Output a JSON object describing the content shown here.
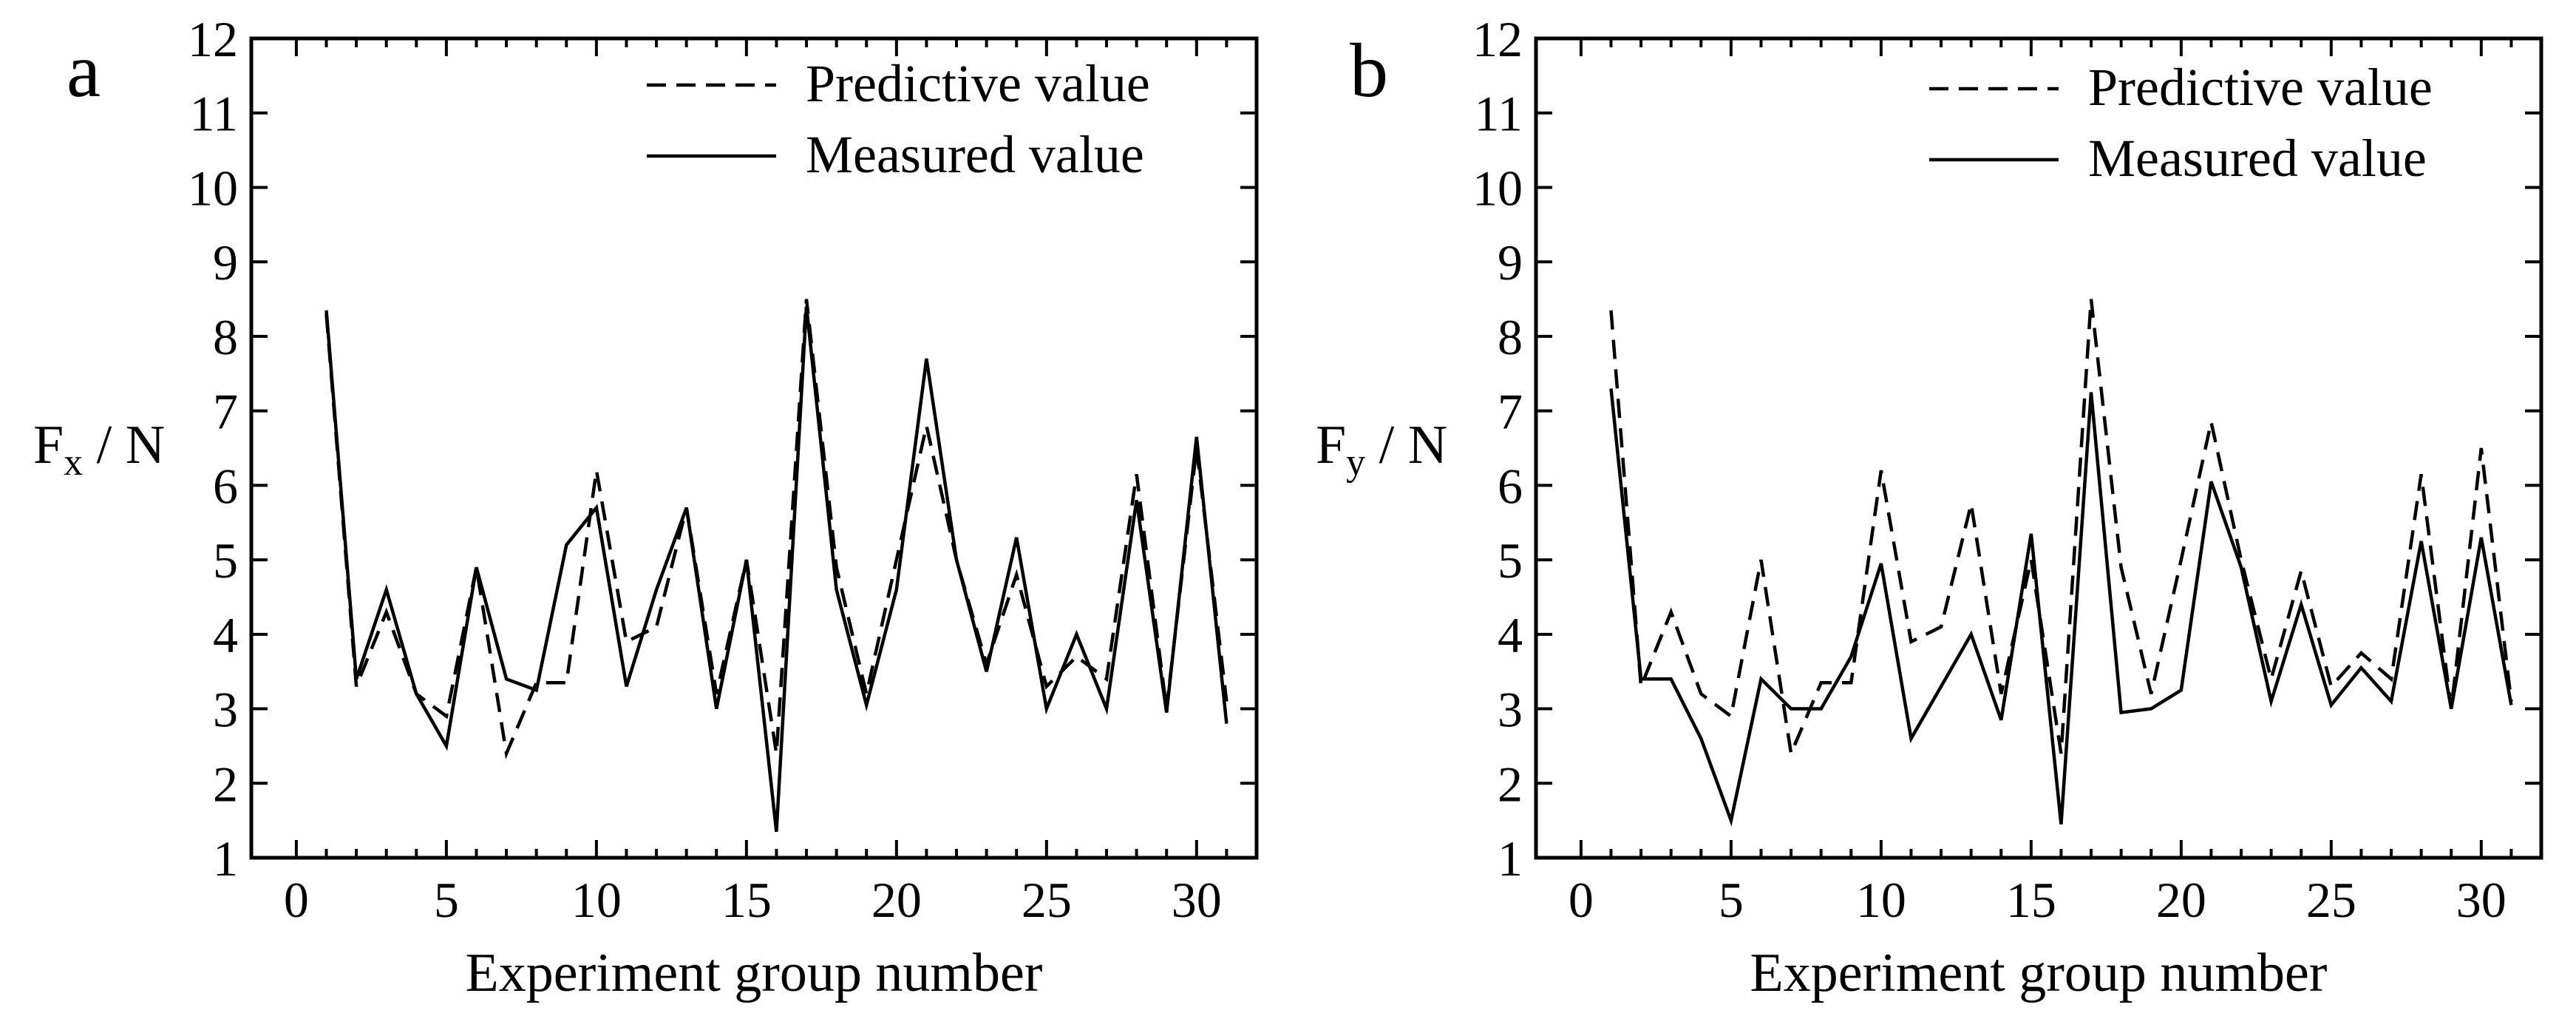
{
  "chart_data": [
    {
      "type": "line",
      "panel_label": "a",
      "xlabel": "Experiment group number",
      "ylabel_main": "F",
      "ylabel_sub": "x",
      "ylabel_unit": " / N",
      "xlim": [
        -1.5,
        32
      ],
      "ylim": [
        1,
        12
      ],
      "xticks": [
        0,
        5,
        10,
        15,
        20,
        25,
        30
      ],
      "yticks": [
        1,
        2,
        3,
        4,
        5,
        6,
        7,
        8,
        9,
        10,
        11,
        12
      ],
      "legend_position": "top-right",
      "x": [
        1,
        2,
        3,
        4,
        5,
        6,
        7,
        8,
        9,
        10,
        11,
        12,
        13,
        14,
        15,
        16,
        17,
        18,
        19,
        20,
        21,
        22,
        23,
        24,
        25,
        26,
        27,
        28,
        29,
        30,
        31
      ],
      "series": [
        {
          "name": "Predictive value",
          "style": "dashed",
          "values": [
            8.3,
            3.3,
            4.3,
            3.2,
            2.9,
            4.9,
            2.4,
            3.35,
            3.35,
            6.2,
            3.9,
            4.1,
            5.7,
            3.2,
            5.0,
            2.4,
            8.5,
            4.9,
            3.2,
            5.0,
            6.8,
            5.0,
            3.6,
            4.8,
            3.3,
            3.7,
            3.4,
            6.15,
            3.0,
            6.5,
            3.1
          ]
        },
        {
          "name": "Measured value",
          "style": "solid",
          "values": [
            8.35,
            3.4,
            4.6,
            3.2,
            2.5,
            4.9,
            3.4,
            3.25,
            5.2,
            5.7,
            3.3,
            4.6,
            5.7,
            3.0,
            5.0,
            1.35,
            8.4,
            4.6,
            3.05,
            4.6,
            7.7,
            5.0,
            3.5,
            5.3,
            3.0,
            4.0,
            3.0,
            5.8,
            2.95,
            6.65,
            2.8
          ]
        }
      ]
    },
    {
      "type": "line",
      "panel_label": "b",
      "xlabel": "Experiment group number",
      "ylabel_main": "F",
      "ylabel_sub": "y",
      "ylabel_unit": " / N",
      "xlim": [
        -1.5,
        32
      ],
      "ylim": [
        1,
        12
      ],
      "xticks": [
        0,
        5,
        10,
        15,
        20,
        25,
        30
      ],
      "yticks": [
        1,
        2,
        3,
        4,
        5,
        6,
        7,
        8,
        9,
        10,
        11,
        12
      ],
      "legend_position": "top-right",
      "x": [
        1,
        2,
        3,
        4,
        5,
        6,
        7,
        8,
        9,
        10,
        11,
        12,
        13,
        14,
        15,
        16,
        17,
        18,
        19,
        20,
        21,
        22,
        23,
        24,
        25,
        26,
        27,
        28,
        29,
        30,
        31
      ],
      "series": [
        {
          "name": "Predictive value",
          "style": "dashed",
          "values": [
            8.35,
            3.3,
            4.3,
            3.2,
            2.9,
            5.0,
            2.4,
            3.35,
            3.35,
            6.2,
            3.9,
            4.1,
            5.75,
            3.2,
            5.0,
            2.4,
            8.5,
            4.9,
            3.2,
            5.0,
            6.85,
            5.0,
            3.4,
            4.85,
            3.3,
            3.75,
            3.4,
            6.15,
            3.0,
            6.5,
            3.1
          ]
        },
        {
          "name": "Measured value",
          "style": "solid",
          "values": [
            7.3,
            3.4,
            3.4,
            2.6,
            1.5,
            3.4,
            3.0,
            3.0,
            3.7,
            4.95,
            2.6,
            3.3,
            4.0,
            2.85,
            5.35,
            1.45,
            7.25,
            2.95,
            3.0,
            3.25,
            6.05,
            4.9,
            3.1,
            4.4,
            3.05,
            3.55,
            3.1,
            5.25,
            3.0,
            5.3,
            3.05
          ]
        }
      ]
    }
  ]
}
